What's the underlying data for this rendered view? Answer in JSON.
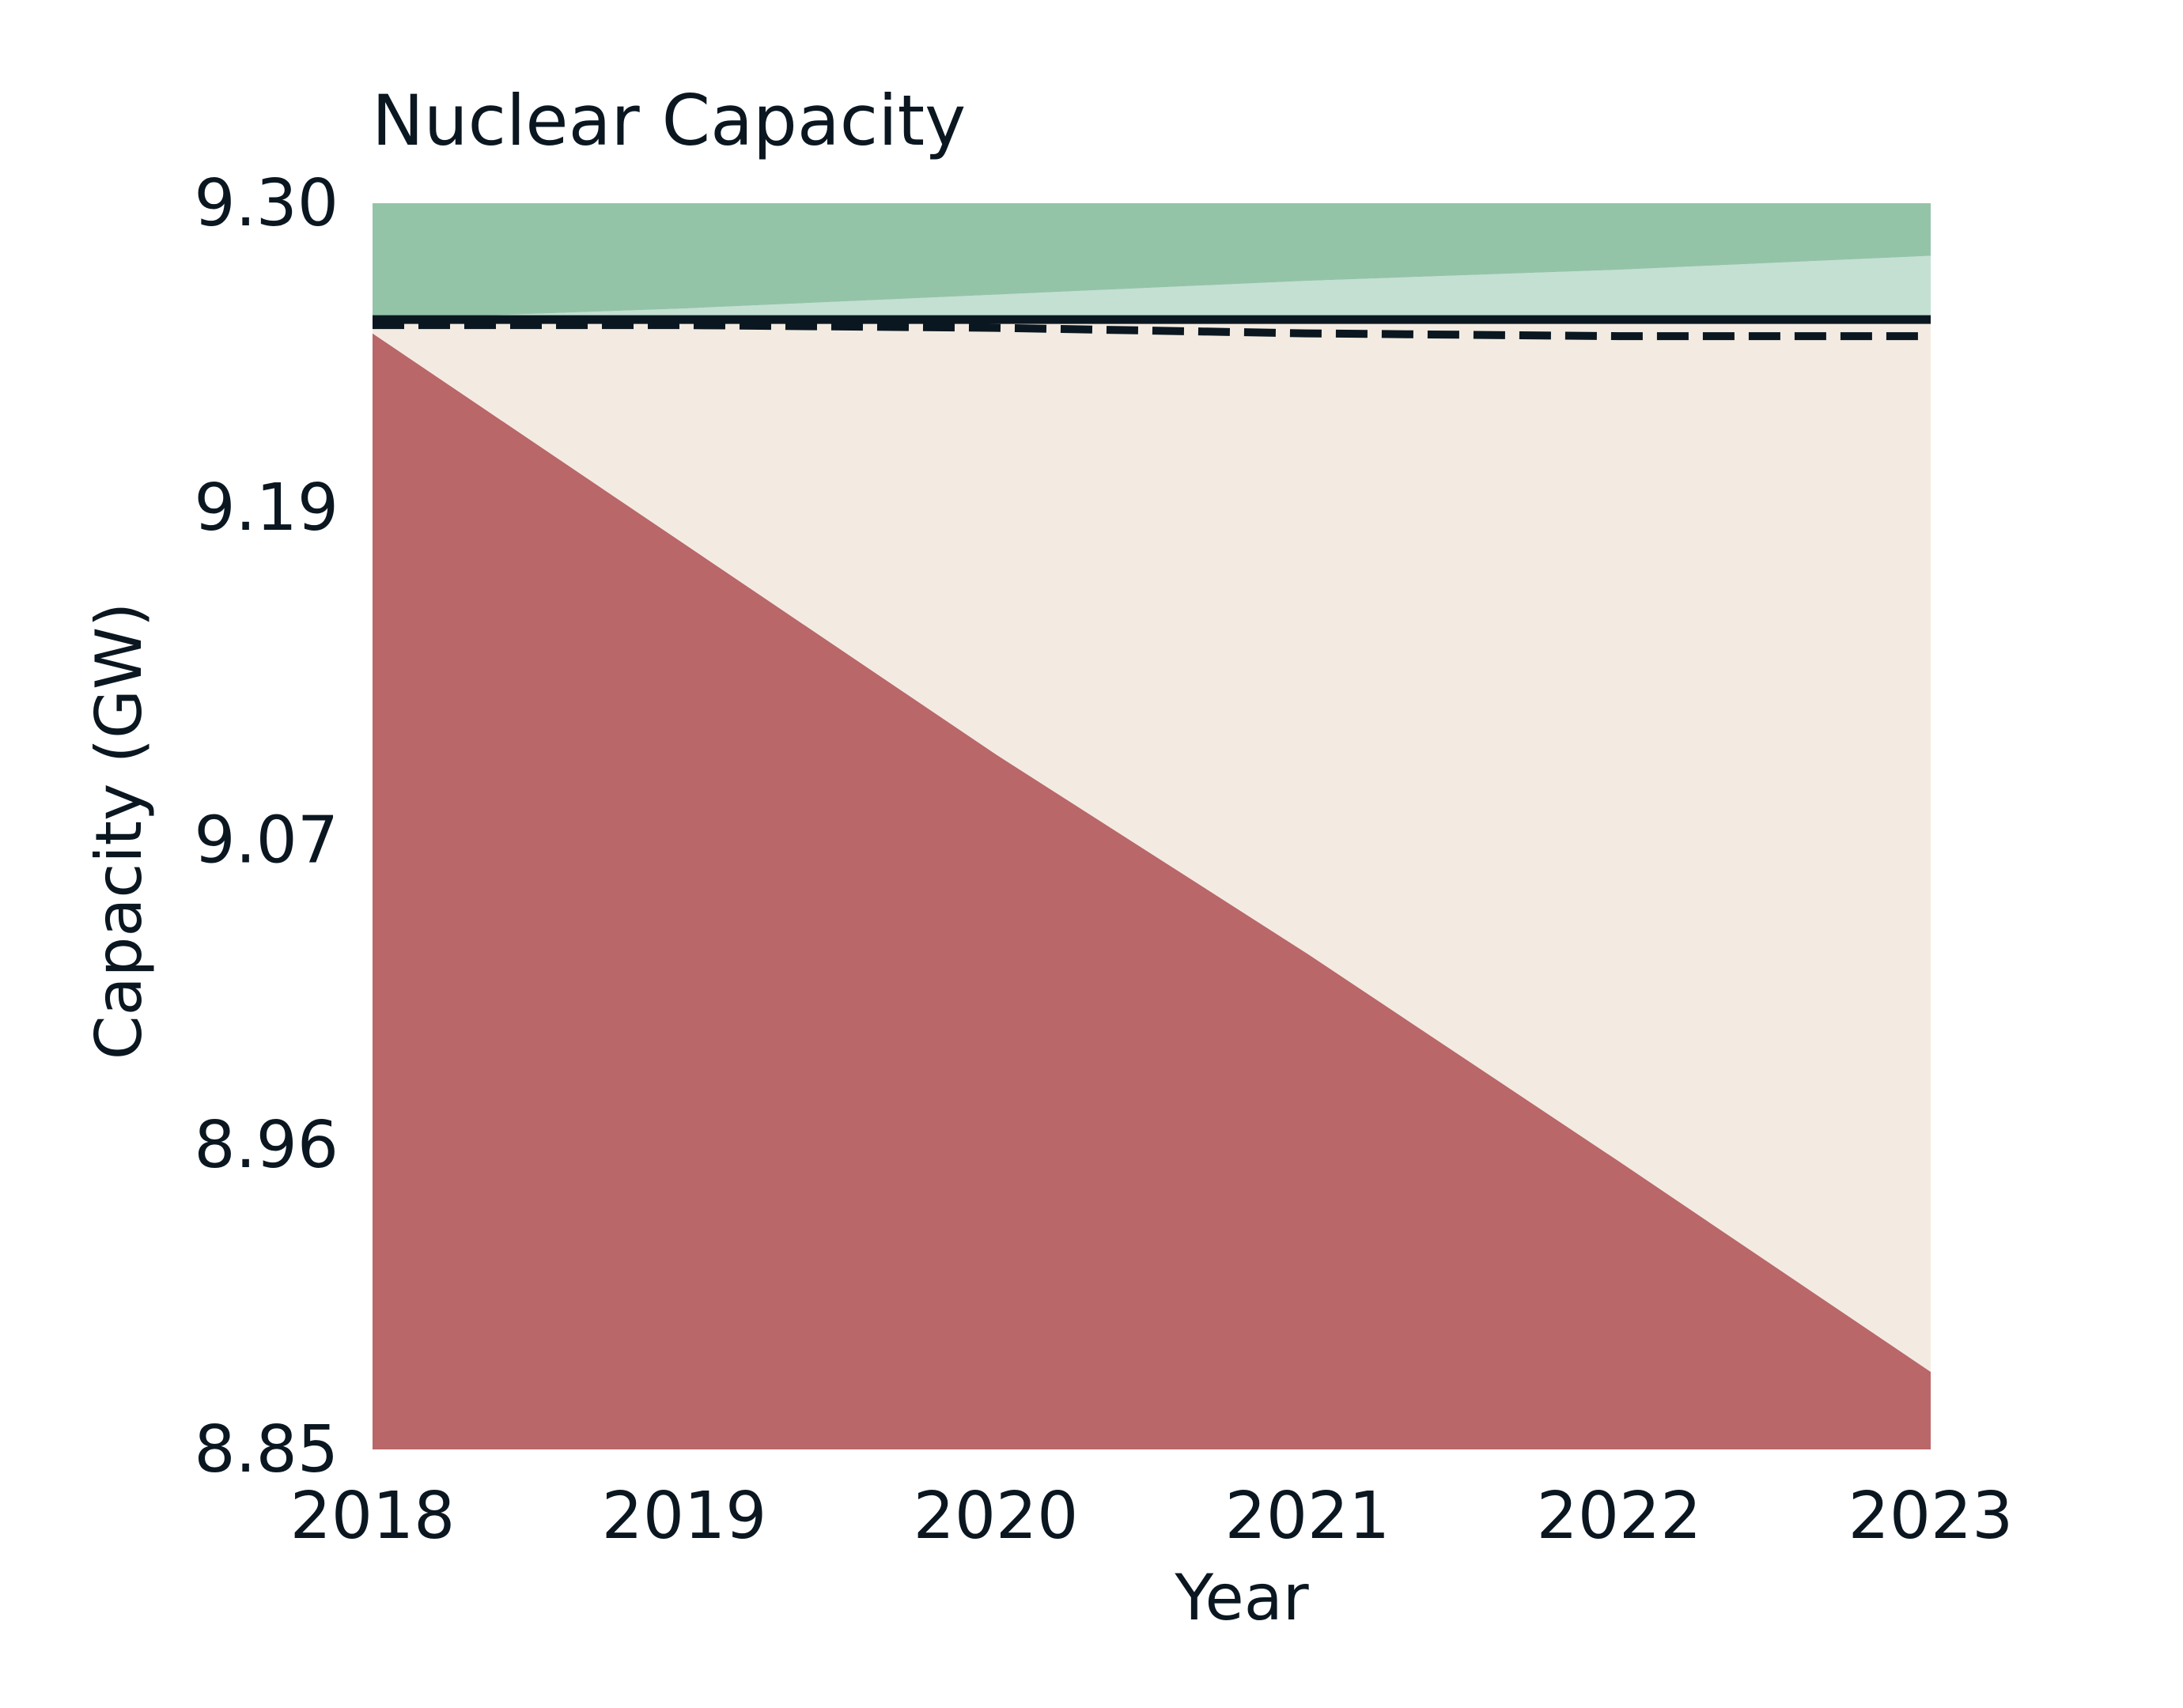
{
  "chart_data": {
    "type": "area",
    "title": "Nuclear Capacity",
    "xlabel": "Year",
    "ylabel": "Capacity (GW)",
    "xlim": [
      2018,
      2023
    ],
    "ylim": [
      8.85,
      9.3
    ],
    "x_ticks": [
      "2018",
      "2019",
      "2020",
      "2021",
      "2022",
      "2023"
    ],
    "y_ticks": [
      "9.30",
      "9.19",
      "9.07",
      "8.96",
      "8.85"
    ],
    "grid": false,
    "legend": "none",
    "x": [
      2018,
      2019,
      2020,
      2021,
      2022,
      2023
    ],
    "layers": [
      {
        "role": "retired",
        "color": "#b96769",
        "lower": [
          8.85,
          8.85,
          8.85,
          8.85,
          8.85,
          8.85
        ],
        "upper": [
          9.253,
          9.177,
          9.101,
          9.029,
          8.954,
          8.878
        ]
      },
      {
        "role": "existing",
        "color": "#f3ebe1",
        "lower": [
          9.253,
          9.177,
          9.101,
          9.029,
          8.954,
          8.878
        ],
        "upper": [
          9.258,
          9.258,
          9.258,
          9.258,
          9.258,
          9.258
        ]
      },
      {
        "role": "light-band",
        "color": "#c4e0d2",
        "lower": [
          9.258,
          9.258,
          9.258,
          9.258,
          9.258,
          9.258
        ],
        "upper": [
          9.258,
          9.262,
          9.267,
          9.272,
          9.276,
          9.281
        ]
      },
      {
        "role": "dark-band",
        "color": "#94c4a8",
        "lower": [
          9.258,
          9.262,
          9.267,
          9.272,
          9.276,
          9.281
        ],
        "upper": [
          9.3,
          9.3,
          9.3,
          9.3,
          9.3,
          9.3
        ]
      }
    ],
    "series": [
      {
        "style": "solid",
        "color": "#0b1720",
        "values": [
          9.258,
          9.258,
          9.258,
          9.258,
          9.258,
          9.258
        ]
      },
      {
        "style": "dashed",
        "color": "#0b1720",
        "values": [
          9.256,
          9.256,
          9.255,
          9.253,
          9.252,
          9.252
        ]
      }
    ]
  }
}
